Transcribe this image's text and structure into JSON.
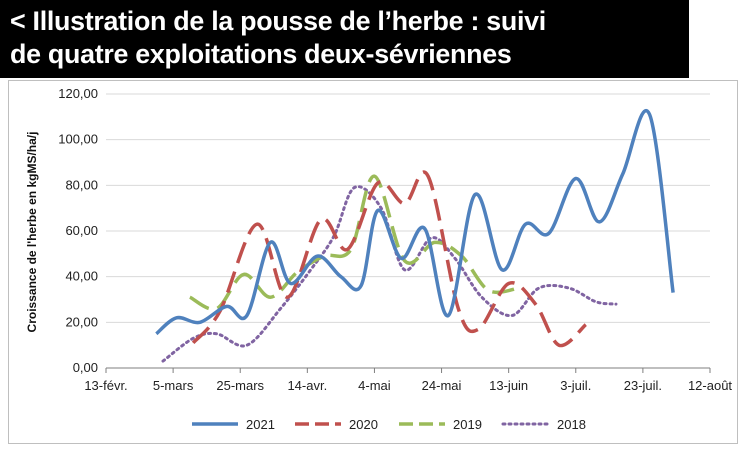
{
  "header": {
    "title_line1": "< Illustration de la pousse de l’herbe : suivi",
    "title_line2": "de quatre exploitations deux-sévriennes"
  },
  "chart_data": {
    "type": "line",
    "ylabel": "Croissance de l'herbe en kgMS/ha/j",
    "xlabel": "",
    "ylim": [
      0,
      120
    ],
    "xlim": [
      "2021-02-13",
      "2021-08-12"
    ],
    "y_ticks": [
      "0,00",
      "20,00",
      "40,00",
      "60,00",
      "80,00",
      "100,00",
      "120,00"
    ],
    "y_tick_values": [
      0,
      20,
      40,
      60,
      80,
      100,
      120
    ],
    "x_ticks": [
      "13-févr.",
      "5-mars",
      "25-mars",
      "14-avr.",
      "4-mai",
      "24-mai",
      "13-juin",
      "3-juil.",
      "23-juil.",
      "12-août"
    ],
    "x_tick_dates": [
      "2021-02-13",
      "2021-03-05",
      "2021-03-25",
      "2021-04-14",
      "2021-05-04",
      "2021-05-24",
      "2021-06-13",
      "2021-07-03",
      "2021-07-23",
      "2021-08-12"
    ],
    "grid": "horizontal",
    "legend_position": "bottom",
    "series": [
      {
        "name": "2021",
        "color": "#4f81bd",
        "style": "solid",
        "points": [
          [
            "2021-02-28",
            15
          ],
          [
            "2021-03-06",
            22
          ],
          [
            "2021-03-13",
            20
          ],
          [
            "2021-03-21",
            27
          ],
          [
            "2021-03-27",
            23
          ],
          [
            "2021-04-03",
            55
          ],
          [
            "2021-04-09",
            37
          ],
          [
            "2021-04-17",
            49
          ],
          [
            "2021-04-24",
            40
          ],
          [
            "2021-04-30",
            36
          ],
          [
            "2021-05-05",
            69
          ],
          [
            "2021-05-12",
            48
          ],
          [
            "2021-05-19",
            61
          ],
          [
            "2021-05-26",
            23
          ],
          [
            "2021-06-03",
            76
          ],
          [
            "2021-06-11",
            43
          ],
          [
            "2021-06-18",
            63
          ],
          [
            "2021-06-25",
            59
          ],
          [
            "2021-07-03",
            83
          ],
          [
            "2021-07-10",
            64
          ],
          [
            "2021-07-17",
            85
          ],
          [
            "2021-07-25",
            111
          ],
          [
            "2021-08-01",
            33
          ]
        ]
      },
      {
        "name": "2020",
        "color": "#c0504d",
        "style": "dashed",
        "points": [
          [
            "2021-03-11",
            11
          ],
          [
            "2021-03-19",
            25
          ],
          [
            "2021-03-30",
            63
          ],
          [
            "2021-04-08",
            31
          ],
          [
            "2021-04-18",
            65
          ],
          [
            "2021-04-26",
            52
          ],
          [
            "2021-05-05",
            81
          ],
          [
            "2021-05-13",
            72
          ],
          [
            "2021-05-20",
            84
          ],
          [
            "2021-05-29",
            26
          ],
          [
            "2021-06-04",
            17
          ],
          [
            "2021-06-13",
            37
          ],
          [
            "2021-06-21",
            28
          ],
          [
            "2021-06-28",
            10
          ],
          [
            "2021-07-06",
            19
          ]
        ]
      },
      {
        "name": "2019",
        "color": "#9bbb59",
        "style": "dashed",
        "points": [
          [
            "2021-03-10",
            31
          ],
          [
            "2021-03-18",
            26
          ],
          [
            "2021-03-26",
            41
          ],
          [
            "2021-04-03",
            31
          ],
          [
            "2021-04-11",
            42
          ],
          [
            "2021-04-19",
            49
          ],
          [
            "2021-04-27",
            52
          ],
          [
            "2021-05-04",
            84
          ],
          [
            "2021-05-13",
            47
          ],
          [
            "2021-05-22",
            55
          ],
          [
            "2021-05-30",
            49
          ],
          [
            "2021-06-07",
            34
          ],
          [
            "2021-06-16",
            35
          ]
        ]
      },
      {
        "name": "2018",
        "color": "#8064a2",
        "style": "dotted",
        "points": [
          [
            "2021-03-02",
            3
          ],
          [
            "2021-03-11",
            13
          ],
          [
            "2021-03-18",
            15
          ],
          [
            "2021-03-27",
            10
          ],
          [
            "2021-04-06",
            26
          ],
          [
            "2021-04-15",
            43
          ],
          [
            "2021-04-22",
            58
          ],
          [
            "2021-04-28",
            79
          ],
          [
            "2021-05-06",
            70
          ],
          [
            "2021-05-13",
            43
          ],
          [
            "2021-05-21",
            57
          ],
          [
            "2021-05-28",
            48
          ],
          [
            "2021-06-05",
            31
          ],
          [
            "2021-06-14",
            23
          ],
          [
            "2021-06-22",
            35
          ],
          [
            "2021-07-01",
            35
          ],
          [
            "2021-07-09",
            29
          ],
          [
            "2021-07-15",
            28
          ]
        ]
      }
    ]
  }
}
